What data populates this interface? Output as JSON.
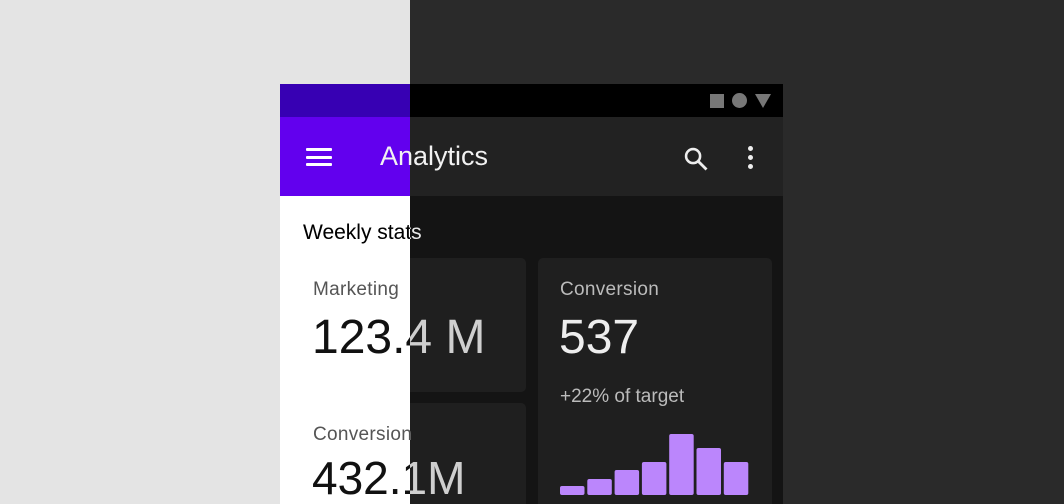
{
  "app_bar": {
    "title": "Analytics",
    "icons": [
      "menu-icon",
      "search-icon",
      "more-vert-icon"
    ]
  },
  "status_bar": {
    "icons": [
      "square-icon",
      "circle-icon",
      "triangle-icon"
    ]
  },
  "section_title": "Weekly stats",
  "cards": [
    {
      "label": "Marketing",
      "value": "123.4 M"
    },
    {
      "label": "Conversion",
      "value": "432.1M"
    },
    {
      "label": "Conversion",
      "value": "537",
      "subtitle": "+22% of target"
    }
  ],
  "chart_data": {
    "type": "bar",
    "values": [
      9,
      16,
      25,
      33,
      61,
      47,
      33
    ],
    "color": "#bb86fc"
  },
  "colors": {
    "primary": "#6200ee",
    "primary_variant": "#3700b3",
    "dark_surface": "#1f1f1f",
    "dark_bg": "#141414",
    "accent_dark": "#bb86fc"
  }
}
